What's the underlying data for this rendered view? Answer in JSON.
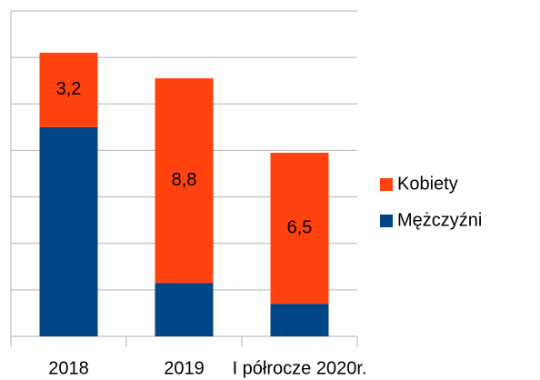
{
  "chart_data": {
    "type": "stacked_bar",
    "categories": [
      "2018",
      "2019",
      "I półrocze 2020r."
    ],
    "series": [
      {
        "name": "Mężczyźni",
        "color": "#004586",
        "values": [
          9.0,
          2.3,
          1.4
        ]
      },
      {
        "name": "Kobiety",
        "color": "#ff420e",
        "values": [
          3.2,
          8.8,
          6.5
        ],
        "value_labels": [
          "3,2",
          "8,8",
          "6,5"
        ]
      }
    ],
    "ylim": [
      0,
      14
    ],
    "yticks": [
      0,
      2,
      4,
      6,
      8,
      10,
      12,
      14
    ],
    "grid": true,
    "legend": "right"
  }
}
